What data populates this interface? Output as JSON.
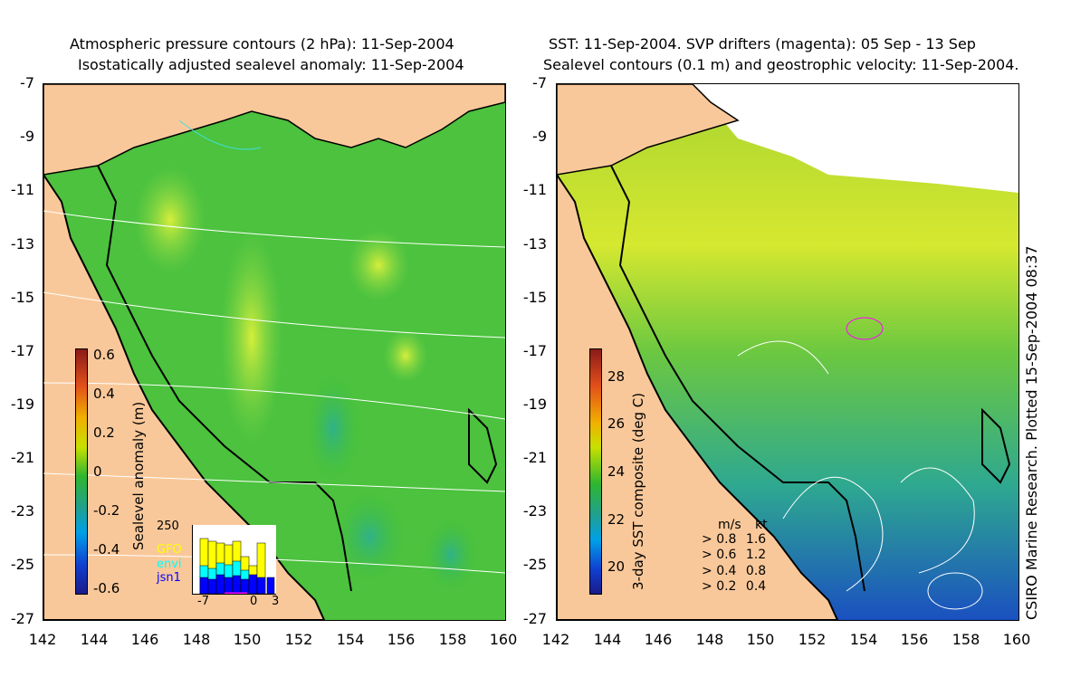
{
  "left_panel": {
    "title_line1": "Atmospheric pressure contours (2 hPa): 11-Sep-2004",
    "title_line2": "Isostatically adjusted sealevel anomaly: 11-Sep-2004",
    "colorbar": {
      "label": "Sealevel anomaly (m)",
      "ticks": [
        "0.6",
        "0.4",
        "0.2",
        "0",
        "-0.2",
        "-0.4",
        "-0.6"
      ]
    },
    "inset": {
      "ymax_label": "250",
      "satellites": [
        {
          "name": "GFO",
          "color": "#ffff00"
        },
        {
          "name": "envi",
          "color": "#00ffff"
        },
        {
          "name": "jsn1",
          "color": "#0000ff"
        }
      ],
      "x_labels": [
        "-7",
        "0",
        "3"
      ]
    }
  },
  "right_panel": {
    "title_line1": "SST: 11-Sep-2004. SVP drifters (magenta): 05 Sep - 13 Sep",
    "title_line2": "Sealevel contours (0.1 m) and geostrophic velocity: 11-Sep-2004.",
    "colorbar": {
      "label": "3-day SST composite (deg C)",
      "ticks": [
        "28",
        "26",
        "24",
        "22",
        "20"
      ]
    },
    "velocity_legend": {
      "header_ms": "m/s",
      "header_kt": "kt",
      "rows": [
        {
          "ms": "0.8",
          "kt": "1.6"
        },
        {
          "ms": "0.6",
          "kt": "1.2"
        },
        {
          "ms": "0.4",
          "kt": "0.8"
        },
        {
          "ms": "0.2",
          "kt": "0.4"
        }
      ]
    },
    "credit": "CSIRO Marine Research. Plotted 15-Sep-2004 08:37"
  },
  "axes": {
    "x_ticks": [
      "142",
      "144",
      "146",
      "148",
      "150",
      "152",
      "154",
      "156",
      "158",
      "160"
    ],
    "y_ticks": [
      "-7",
      "-9",
      "-11",
      "-13",
      "-15",
      "-17",
      "-19",
      "-21",
      "-23",
      "-25",
      "-27"
    ]
  },
  "colors": {
    "land": "#f9c89a",
    "coast": "#000000",
    "ssh_background": "#3fbf3a",
    "sst_background": "#2eae48"
  }
}
